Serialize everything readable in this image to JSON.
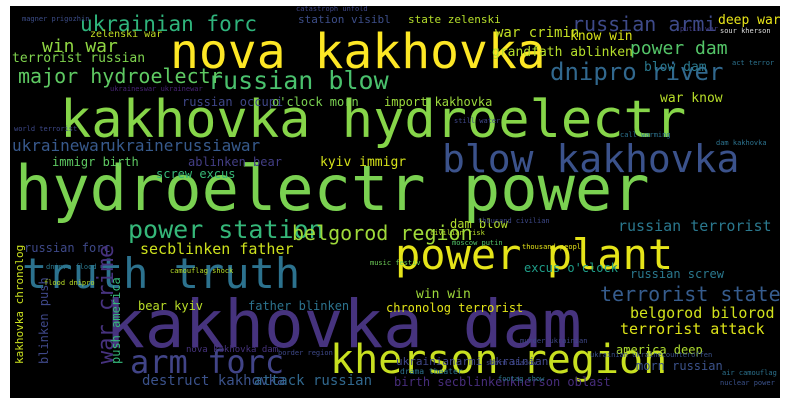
{
  "words": [
    {
      "text": "kakhovka dam",
      "color": "#46337e"
    },
    {
      "text": "hydroelectr power",
      "color": "#7ad151"
    },
    {
      "text": "kakhovka hydroelectr",
      "color": "#86d549"
    },
    {
      "text": "nova kakhovka",
      "color": "#fde725"
    },
    {
      "text": "power plant",
      "color": "#e5e419"
    },
    {
      "text": "kherson region",
      "color": "#c8e020"
    },
    {
      "text": "truth truth",
      "color": "#2c728e"
    },
    {
      "text": "blow kakhovka",
      "color": "#3b528b"
    },
    {
      "text": "arm forc",
      "color": "#414487"
    },
    {
      "text": "power station",
      "color": "#35b779"
    },
    {
      "text": "russian blow",
      "color": "#4ac16d"
    },
    {
      "text": "dnipro river",
      "color": "#31688e"
    },
    {
      "text": "ukrainian forc",
      "color": "#2fb47c"
    },
    {
      "text": "major hydroelectr",
      "color": "#5ec962"
    },
    {
      "text": "terrorist state",
      "color": "#365c8d"
    },
    {
      "text": "belgorod region",
      "color": "#9fda3a"
    },
    {
      "text": "russian armi",
      "color": "#3e4a89"
    },
    {
      "text": "power dam",
      "color": "#54c568"
    },
    {
      "text": "ukrainewar",
      "color": "#38598c"
    },
    {
      "text": "ukrainerussiawar",
      "color": "#375a8c"
    },
    {
      "text": "win war",
      "color": "#90d743"
    },
    {
      "text": "terrorist russian",
      "color": "#7fd34e"
    },
    {
      "text": "belgorod bilorod",
      "color": "#d0e11c"
    },
    {
      "text": "terrorist attack",
      "color": "#dde318"
    },
    {
      "text": "russian terrorist",
      "color": "#2a788e"
    },
    {
      "text": "war crime",
      "color": "#46327e"
    },
    {
      "text": "destruct kakhovka",
      "color": "#3b528b"
    },
    {
      "text": "attack russian",
      "color": "#31688e"
    },
    {
      "text": "secblinken father",
      "color": "#cde11d"
    },
    {
      "text": "grandfath ablinken",
      "color": "#b5de2b"
    },
    {
      "text": "war crimin",
      "color": "#c2df23"
    },
    {
      "text": "deep war",
      "color": "#e7e419"
    },
    {
      "text": "know win",
      "color": "#d8e219"
    },
    {
      "text": "blow dam",
      "color": "#2a788e"
    },
    {
      "text": "war know",
      "color": "#b8de29"
    },
    {
      "text": "russian occupi",
      "color": "#3f4788"
    },
    {
      "text": "o'clock morn",
      "color": "#7ad151"
    },
    {
      "text": "import kakhovka",
      "color": "#9bd93c"
    },
    {
      "text": "ablinken bear",
      "color": "#433e85"
    },
    {
      "text": "immigr birth",
      "color": "#5ec962"
    },
    {
      "text": "kyiv immigr",
      "color": "#d5e21a"
    },
    {
      "text": "screw excus",
      "color": "#38b977"
    },
    {
      "text": "dam blow",
      "color": "#b2dd2d"
    },
    {
      "text": "excus o'clock",
      "color": "#1f9e89"
    },
    {
      "text": "russian forc",
      "color": "#3e4989"
    },
    {
      "text": "bear kyiv",
      "color": "#bade28"
    },
    {
      "text": "father blinken",
      "color": "#2c738e"
    },
    {
      "text": "win win",
      "color": "#9fda3a"
    },
    {
      "text": "chronolog terrorist",
      "color": "#e2e418"
    },
    {
      "text": "america deep",
      "color": "#addc30"
    },
    {
      "text": "birth secblinkenkherson oblast",
      "color": "#472d7b"
    },
    {
      "text": "morn russian",
      "color": "#3b528b"
    },
    {
      "text": "push america",
      "color": "#35b779"
    },
    {
      "text": "kakhovka chronolog",
      "color": "#cae11f"
    },
    {
      "text": "blinken push",
      "color": "#3f4889"
    },
    {
      "text": "russian screw",
      "color": "#2a788e"
    },
    {
      "text": "station visibl",
      "color": "#3d4e8a"
    },
    {
      "text": "state zelenski",
      "color": "#b5de2b"
    },
    {
      "text": "zelenski war",
      "color": "#c2df23"
    },
    {
      "text": "ukrainianarmi ukrainian",
      "color": "#3f4788"
    },
    {
      "text": "nova kakhovka dam",
      "color": "#46337e"
    },
    {
      "text": "magner prigozhin",
      "color": "#3d4e8a"
    },
    {
      "text": "ukraineswar ukrainewar",
      "color": "#482475"
    },
    {
      "text": "putin war",
      "color": "#433e85"
    },
    {
      "text": "catastroph unfold",
      "color": "#3f4788"
    },
    {
      "text": "drama theater",
      "color": "#2c728e"
    },
    {
      "text": "flood dnipro",
      "color": "#b8de29"
    },
    {
      "text": "camouflag shock",
      "color": "#b8de29"
    },
    {
      "text": "music festiv",
      "color": "#6ece58"
    },
    {
      "text": "thousand peopl",
      "color": "#e5e419"
    },
    {
      "text": "air camouflag",
      "color": "#2c728e"
    },
    {
      "text": "nuclear power",
      "color": "#3b528b"
    },
    {
      "text": "ukrainian ukrainecounteroffen",
      "color": "#3b528b"
    },
    {
      "text": "footag show",
      "color": "#2a788e"
    },
    {
      "text": "border region",
      "color": "#3e4989"
    },
    {
      "text": "storm shadow",
      "color": "#3f4788"
    },
    {
      "text": "moscow putin",
      "color": "#52c569"
    },
    {
      "text": "call warming",
      "color": "#2c728e"
    },
    {
      "text": "dam kakhovka",
      "color": "#2c728e"
    },
    {
      "text": "world terrorist",
      "color": "#3e4989"
    },
    {
      "text": "act terror",
      "color": "#2c728e"
    },
    {
      "text": "civilian risk",
      "color": "#b8de29"
    },
    {
      "text": "murder ukrainian",
      "color": "#3f4788"
    },
    {
      "text": "still water",
      "color": "#3f4788"
    },
    {
      "text": "thousand civilian",
      "color": "#3e4989"
    },
    {
      "text": "sour kherson",
      "color": "#ddd"
    },
    {
      "text": "dnipro flood",
      "color": "#2a788e"
    }
  ]
}
